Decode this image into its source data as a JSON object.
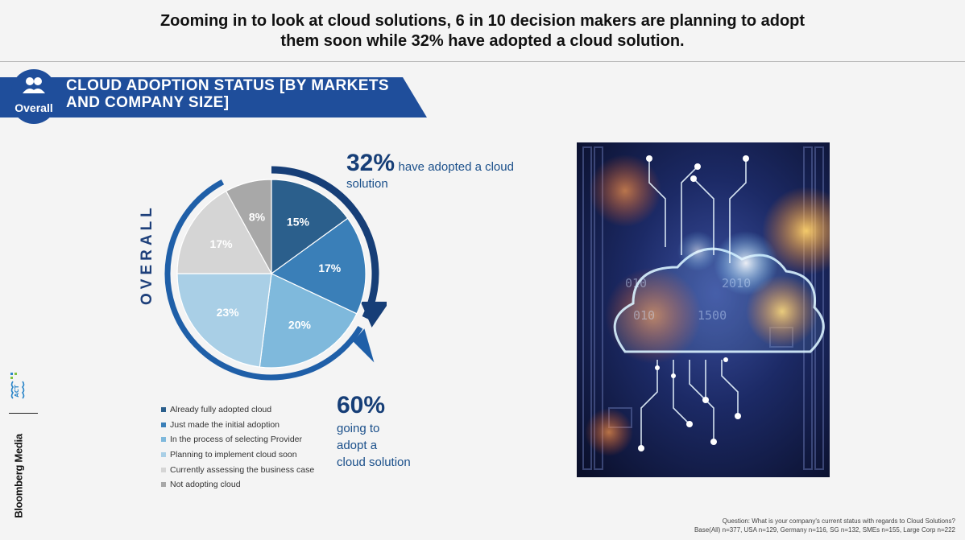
{
  "headline": {
    "line1": "Zooming in to look at cloud solutions, 6 in 10 decision makers are planning to adopt",
    "line2": "them soon while 32% have adopted a cloud solution."
  },
  "banner": {
    "badge_label": "Overall",
    "title": "CLOUD ADOPTION STATUS [BY MARKETS AND COMPANY SIZE]",
    "color": "#1f4e9b"
  },
  "side_label": "OVERALL",
  "chart_data": {
    "type": "pie",
    "title": "Cloud adoption status – Overall",
    "labels": [
      "Already fully adopted cloud",
      "Just made the initial adoption",
      "In the process of selecting Provider",
      "Planning to implement cloud  soon",
      "Currently assessing the business case",
      "Not adopting cloud"
    ],
    "values": [
      15,
      17,
      20,
      23,
      17,
      8
    ],
    "value_labels": [
      "15%",
      "17%",
      "20%",
      "23%",
      "17%",
      "8%"
    ],
    "colors": [
      "#2b5f8c",
      "#3a7fb8",
      "#7fb9dc",
      "#a9cfe6",
      "#d5d5d5",
      "#a8a8a8"
    ],
    "start_angle_deg": 0,
    "direction": "clockwise",
    "legend_position": "bottom"
  },
  "stats": {
    "top_value": "32%",
    "top_text": "have adopted a cloud solution",
    "bottom_value": "60%",
    "bottom_line1": "going to",
    "bottom_line2": "adopt a",
    "bottom_line3": "cloud solution"
  },
  "brand": {
    "act_logo": "ACT",
    "publisher": "Bloomberg Media"
  },
  "footnote": {
    "question": "Question: What is your company's current status with regards to Cloud Solutions?",
    "base": "Base(All) n=377, USA n=129, Germany n=116, SG n=132, SMEs n=155, Large Corp n=222"
  }
}
